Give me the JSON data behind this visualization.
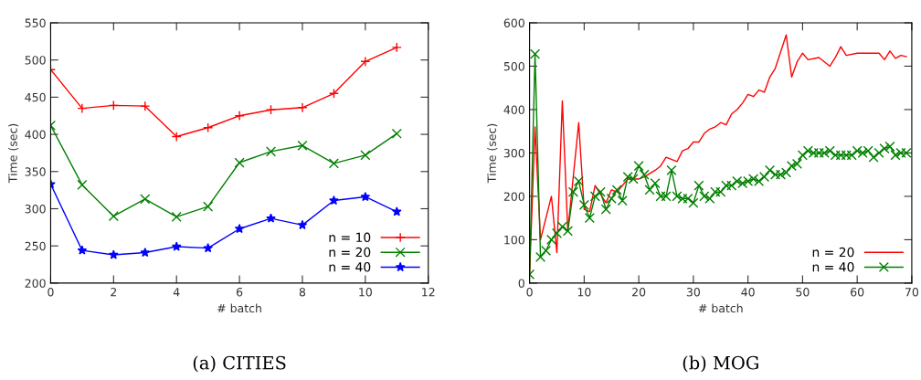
{
  "chart_data": [
    {
      "type": "line",
      "title": "(a) CITIES",
      "xlabel": "# batch",
      "ylabel": "Time (sec)",
      "xlim": [
        0,
        12
      ],
      "xticks": [
        0,
        2,
        4,
        6,
        8,
        10,
        12
      ],
      "ylim": [
        200,
        550
      ],
      "yticks": [
        200,
        250,
        300,
        350,
        400,
        450,
        500,
        550
      ],
      "grid": false,
      "legend": "bottom right",
      "x": [
        0,
        1,
        2,
        3,
        4,
        5,
        6,
        7,
        8,
        9,
        10,
        11
      ],
      "series": [
        {
          "name": "n = 10",
          "color": "#ff0000",
          "marker": "plus",
          "values": [
            487,
            435,
            439,
            438,
            397,
            409,
            425,
            433,
            436,
            455,
            498,
            517
          ]
        },
        {
          "name": "n = 20",
          "color": "#008000",
          "marker": "cross",
          "values": [
            412,
            332,
            290,
            313,
            289,
            303,
            362,
            377,
            385,
            361,
            372,
            401
          ]
        },
        {
          "name": "n = 40",
          "color": "#0000ff",
          "marker": "star",
          "values": [
            333,
            244,
            238,
            241,
            249,
            247,
            273,
            287,
            278,
            311,
            316,
            296
          ]
        }
      ]
    },
    {
      "type": "line",
      "title": "(b) MOG",
      "xlabel": "# batch",
      "ylabel": "Time (sec)",
      "xlim": [
        0,
        70
      ],
      "xticks": [
        0,
        10,
        20,
        30,
        40,
        50,
        60,
        70
      ],
      "ylim": [
        0,
        600
      ],
      "yticks": [
        0,
        100,
        200,
        300,
        400,
        500,
        600
      ],
      "grid": false,
      "legend": "bottom right",
      "series": [
        {
          "name": "n = 20",
          "color": "#ff0000",
          "marker": "none",
          "x": [
            0,
            1,
            2,
            4,
            5,
            6,
            7,
            9,
            10,
            11,
            12,
            14,
            15,
            16,
            18,
            20,
            21,
            23,
            24,
            25,
            27,
            28,
            29,
            30,
            31,
            32,
            33,
            34,
            35,
            36,
            37,
            38,
            39,
            40,
            41,
            42,
            43,
            44,
            45,
            47,
            48,
            49,
            50,
            51,
            53,
            55,
            56,
            57,
            58,
            60,
            62,
            64,
            65,
            66,
            67,
            68,
            69
          ],
          "values": [
            20,
            360,
            100,
            200,
            70,
            420,
            120,
            370,
            170,
            165,
            225,
            185,
            215,
            210,
            240,
            240,
            245,
            260,
            270,
            290,
            280,
            305,
            310,
            325,
            325,
            345,
            355,
            360,
            370,
            365,
            390,
            400,
            415,
            435,
            430,
            445,
            440,
            475,
            495,
            572,
            475,
            510,
            530,
            515,
            520,
            500,
            520,
            545,
            525,
            530,
            530,
            530,
            515,
            535,
            518,
            525,
            522
          ]
        },
        {
          "name": "n = 40",
          "color": "#008000",
          "marker": "cross",
          "x": [
            0,
            1,
            2,
            3,
            4,
            5,
            6,
            7,
            8,
            9,
            10,
            11,
            12,
            13,
            14,
            15,
            16,
            17,
            18,
            19,
            20,
            21,
            22,
            23,
            24,
            25,
            26,
            27,
            28,
            29,
            30,
            31,
            32,
            33,
            34,
            35,
            36,
            37,
            38,
            39,
            40,
            41,
            42,
            43,
            44,
            45,
            46,
            47,
            48,
            49,
            50,
            51,
            52,
            53,
            54,
            55,
            56,
            57,
            58,
            59,
            60,
            61,
            62,
            63,
            64,
            65,
            66,
            67,
            68,
            69
          ],
          "values": [
            20,
            528,
            60,
            75,
            100,
            115,
            130,
            120,
            210,
            235,
            180,
            150,
            200,
            210,
            170,
            195,
            215,
            190,
            245,
            240,
            270,
            250,
            215,
            230,
            200,
            200,
            260,
            200,
            195,
            195,
            185,
            225,
            200,
            195,
            210,
            210,
            225,
            225,
            235,
            230,
            235,
            240,
            235,
            245,
            260,
            250,
            250,
            255,
            270,
            275,
            295,
            305,
            300,
            300,
            300,
            305,
            295,
            295,
            295,
            295,
            305,
            300,
            305,
            290,
            300,
            310,
            315,
            295,
            300,
            300
          ]
        }
      ]
    }
  ]
}
